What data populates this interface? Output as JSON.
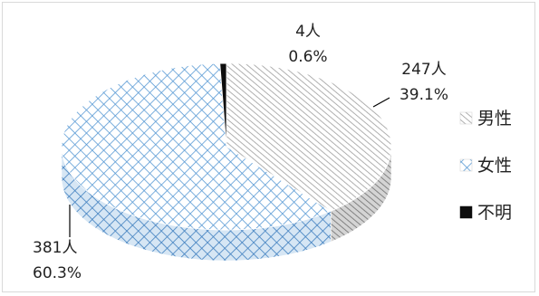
{
  "chart_data": {
    "type": "pie",
    "style": "3d",
    "legend": "right",
    "series": [
      {
        "name": "男性",
        "count": 247,
        "count_label": "247人",
        "percent_label": "39.1%",
        "pattern": "diagonal",
        "color": "#a6a6a6"
      },
      {
        "name": "女性",
        "count": 381,
        "count_label": "381人",
        "percent_label": "60.3%",
        "pattern": "crosshatch",
        "color": "#5b9bd5"
      },
      {
        "name": "不明",
        "count": 4,
        "count_label": "4人",
        "percent_label": "0.6%",
        "pattern": "solid",
        "color": "#0d0d0d"
      }
    ]
  }
}
